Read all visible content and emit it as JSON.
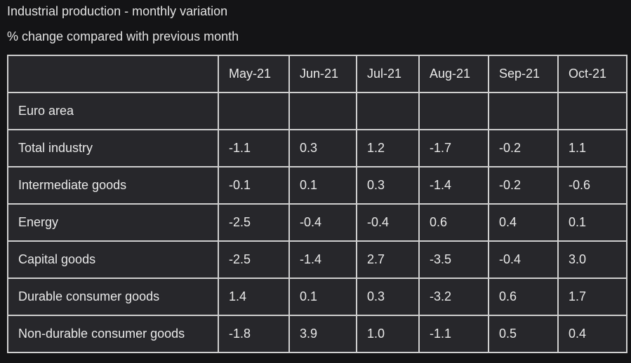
{
  "chart_data": {
    "type": "table",
    "title": "Industrial production - monthly variation",
    "subtitle": "% change compared with previous month",
    "columns": [
      "",
      "May-21",
      "Jun-21",
      "Jul-21",
      "Aug-21",
      "Sep-21",
      "Oct-21"
    ],
    "rows": [
      {
        "label": "Euro area",
        "values": [
          "",
          "",
          "",
          "",
          "",
          ""
        ]
      },
      {
        "label": "Total industry",
        "values": [
          "-1.1",
          "0.3",
          "1.2",
          "-1.7",
          "-0.2",
          "1.1"
        ]
      },
      {
        "label": "Intermediate goods",
        "values": [
          "-0.1",
          "0.1",
          "0.3",
          "-1.4",
          "-0.2",
          "-0.6"
        ]
      },
      {
        "label": "Energy",
        "values": [
          "-2.5",
          "-0.4",
          "-0.4",
          "0.6",
          "0.4",
          "0.1"
        ]
      },
      {
        "label": "Capital goods",
        "values": [
          "-2.5",
          "-1.4",
          "2.7",
          "-3.5",
          "-0.4",
          "3.0"
        ]
      },
      {
        "label": "Durable consumer goods",
        "values": [
          "1.4",
          "0.1",
          "0.3",
          "-3.2",
          "0.6",
          "1.7"
        ]
      },
      {
        "label": "Non-durable consumer goods",
        "values": [
          "-1.8",
          "3.9",
          "1.0",
          "-1.1",
          "0.5",
          "0.4"
        ]
      }
    ]
  },
  "colors": {
    "background": "#141416",
    "table_background": "#27272b",
    "grid": "#cfcfcf",
    "text": "#e9e9e9"
  }
}
